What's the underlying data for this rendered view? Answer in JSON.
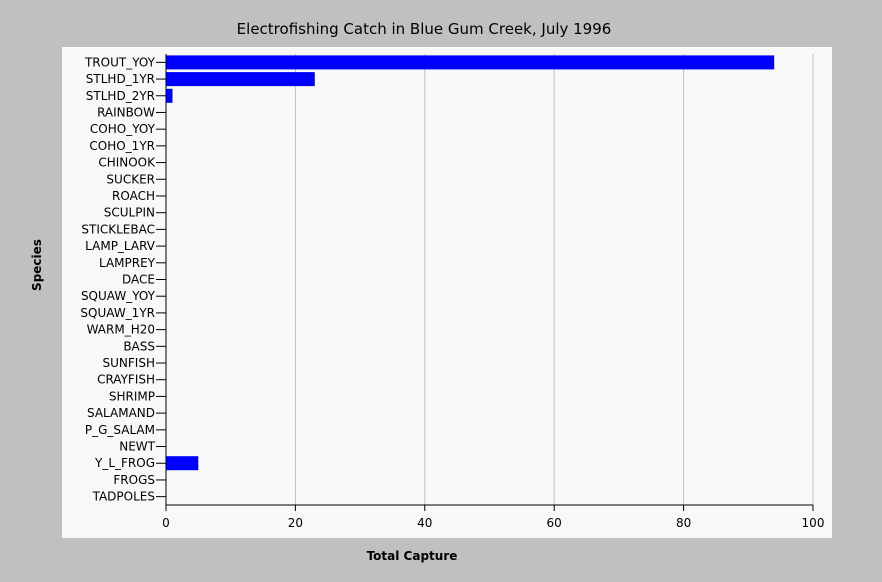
{
  "chart_data": {
    "type": "bar",
    "orientation": "horizontal",
    "title": "Electrofishing Catch in Blue Gum Creek, July 1996",
    "xlabel": "Total Capture",
    "ylabel": "Species",
    "xlim": [
      0,
      100
    ],
    "xticks": [
      0,
      20,
      40,
      60,
      80,
      100
    ],
    "grid": "vertical",
    "categories": [
      "TROUT_YOY",
      "STLHD_1YR",
      "STLHD_2YR",
      "RAINBOW",
      "COHO_YOY",
      "COHO_1YR",
      "CHINOOK",
      "SUCKER",
      "ROACH",
      "SCULPIN",
      "STICKLEBAC",
      "LAMP_LARV",
      "LAMPREY",
      "DACE",
      "SQUAW_YOY",
      "SQUAW_1YR",
      "WARM_H20",
      "BASS",
      "SUNFISH",
      "CRAYFISH",
      "SHRIMP",
      "SALAMAND",
      "P_G_SALAM",
      "NEWT",
      "Y_L_FROG",
      "FROGS",
      "TADPOLES"
    ],
    "values": [
      94,
      23,
      1,
      0,
      0,
      0,
      0,
      0,
      0,
      0,
      0,
      0,
      0,
      0,
      0,
      0,
      0,
      0,
      0,
      0,
      0,
      0,
      0,
      0,
      5,
      0,
      0
    ],
    "bar_color": "#0000ff",
    "plot_background": "#f8f8f8",
    "grid_color": "#c0c0c0"
  }
}
